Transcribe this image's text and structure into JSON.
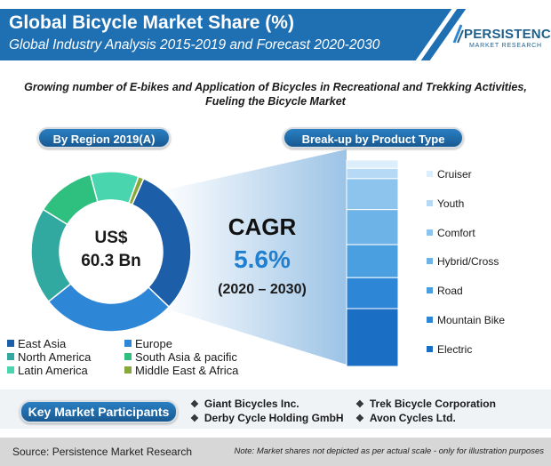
{
  "header": {
    "title": "Global Bicycle Market Share (%)",
    "subtitle": "Global Industry Analysis 2015-2019 and Forecast 2020-2030",
    "logo_name": "PERSISTENCE",
    "logo_sub": "MARKET RESEARCH",
    "brand_color": "#1f6fb3"
  },
  "tagline": {
    "line1": "Growing number of E-bikes and Application of Bicycles in Recreational and Trekking Activities,",
    "line2": "Fueling the Bicycle Market"
  },
  "region_panel": {
    "heading": "By Region 2019(A)",
    "center_line1": "US$",
    "center_line2": "60.3 Bn"
  },
  "product_panel": {
    "heading": "Break-up by Product Type"
  },
  "cagr": {
    "label": "CAGR",
    "value": "5.6%",
    "period": "(2020 – 2030)"
  },
  "chart_data": [
    {
      "type": "pie",
      "variant": "donut",
      "title": "By Region 2019(A)",
      "categories": [
        "East Asia",
        "Europe",
        "North America",
        "South Asia & pacific",
        "Latin America",
        "Middle East & Africa"
      ],
      "values": [
        28,
        25,
        18,
        11,
        9,
        1
      ],
      "colors": [
        "#1d5ea8",
        "#2e86d6",
        "#31a8a0",
        "#2fbf7e",
        "#49d6ae",
        "#8aa83a"
      ],
      "legend_position": "bottom"
    },
    {
      "type": "bar",
      "variant": "stacked-100",
      "title": "Break-up by Product Type",
      "categories": [
        "Cruiser",
        "Youth",
        "Comfort",
        "Hybrid/Cross",
        "Road",
        "Mountain Bike",
        "Electric"
      ],
      "values": [
        4,
        5,
        15,
        17,
        16,
        15,
        28
      ],
      "colors": [
        "#dceefb",
        "#b6daf5",
        "#8cc4ee",
        "#6eb3e8",
        "#4a9fe0",
        "#2e86d6",
        "#1a6fc4"
      ],
      "legend_position": "right"
    }
  ],
  "key_participants": {
    "heading": "Key Market Participants",
    "items": [
      "Giant Bicycles Inc.",
      "Derby Cycle Holding GmbH",
      "Trek Bicycle Corporation",
      "Avon Cycles Ltd."
    ]
  },
  "footer": {
    "source": "Source: Persistence Market Research",
    "note": "Note: Market shares not depicted as per actual scale - only for illustration purposes"
  }
}
